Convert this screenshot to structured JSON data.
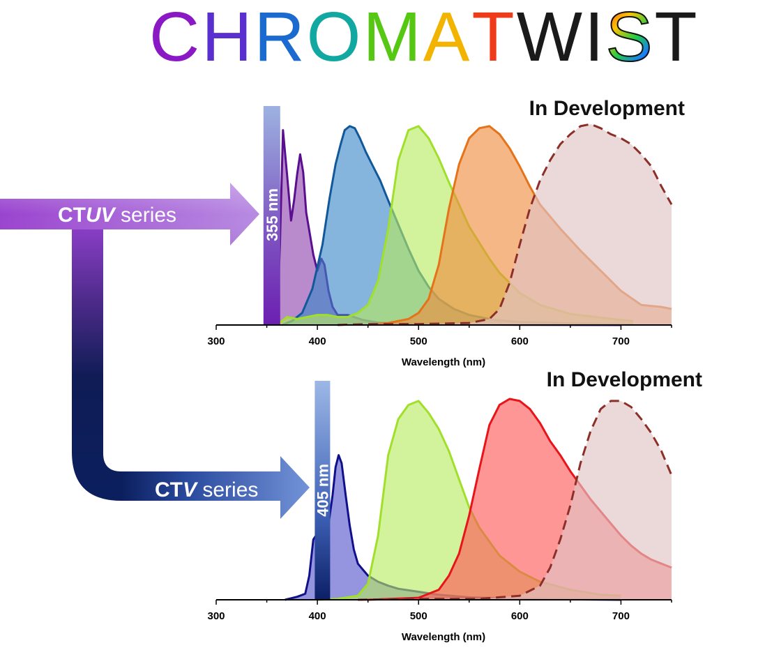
{
  "logo": {
    "text_letters": [
      "C",
      "H",
      "R",
      "O",
      "M",
      "A",
      "T",
      "W",
      "I",
      "S",
      "T"
    ],
    "letter_colors": [
      "#8a18c4",
      "#5a2fd0",
      "#1a6ad0",
      "#10a8a0",
      "#56c814",
      "#f2b400",
      "#ef3b1a",
      "#1a1a1a",
      "#1a1a1a",
      "gradient",
      "#1a1a1a"
    ],
    "gradient_letter_index": 9
  },
  "arrows": {
    "uv": {
      "label_prefix": "CT",
      "label_italic": "UV",
      "label_suffix": " series",
      "color": "#a056d4"
    },
    "v": {
      "label_prefix": "CT",
      "label_italic": "V",
      "label_suffix": " series",
      "color": "#3c5ec4"
    }
  },
  "chart_data": [
    {
      "type": "area",
      "title": "In Development",
      "xlabel": "Wavelength (nm)",
      "xlim": [
        300,
        750
      ],
      "xticks": [
        300,
        400,
        500,
        600,
        700
      ],
      "ylim": [
        0,
        1
      ],
      "excitation": {
        "label": "355 nm",
        "wavelength": 355,
        "fill": "#7d3fbe"
      },
      "series": [
        {
          "name": "CTUV violet",
          "stroke": "#5a0f8e",
          "fill": "#8e44ad",
          "dashed": false,
          "x": [
            360,
            363,
            366,
            370,
            374,
            377,
            380,
            383,
            386,
            389,
            392,
            396,
            400,
            404,
            407,
            411,
            415,
            420,
            430,
            445,
            460,
            480,
            520,
            600,
            700
          ],
          "y": [
            0,
            0.4,
            0.97,
            0.75,
            0.52,
            0.62,
            0.75,
            0.85,
            0.76,
            0.56,
            0.47,
            0.35,
            0.27,
            0.33,
            0.3,
            0.17,
            0.09,
            0.05,
            0.05,
            0.025,
            0.012,
            0.006,
            0.003,
            0.001,
            0
          ]
        },
        {
          "name": "CTUV blue",
          "stroke": "#11589a",
          "fill": "#3a86c6",
          "dashed": false,
          "x": [
            365,
            375,
            385,
            395,
            405,
            412,
            418,
            423,
            427,
            432,
            437,
            442,
            448,
            455,
            462,
            470,
            480,
            490,
            500,
            510,
            520,
            535,
            550,
            575,
            600,
            650,
            712
          ],
          "y": [
            0,
            0.02,
            0.06,
            0.18,
            0.4,
            0.63,
            0.8,
            0.9,
            0.97,
            0.99,
            0.98,
            0.93,
            0.86,
            0.79,
            0.72,
            0.62,
            0.5,
            0.38,
            0.27,
            0.19,
            0.13,
            0.08,
            0.05,
            0.025,
            0.015,
            0.008,
            0.003
          ]
        },
        {
          "name": "CTUV green",
          "stroke": "#a0e02a",
          "fill": "#b8ea60",
          "dashed": false,
          "x": [
            360,
            370,
            380,
            390,
            400,
            410,
            420,
            430,
            440,
            450,
            460,
            470,
            480,
            490,
            500,
            510,
            520,
            530,
            540,
            550,
            560,
            570,
            580,
            600,
            620,
            650,
            700,
            712
          ],
          "y": [
            0,
            0.04,
            0.03,
            0.04,
            0.05,
            0.05,
            0.04,
            0.04,
            0.06,
            0.1,
            0.22,
            0.48,
            0.82,
            0.97,
            0.99,
            0.93,
            0.83,
            0.71,
            0.6,
            0.49,
            0.41,
            0.33,
            0.26,
            0.16,
            0.1,
            0.055,
            0.025,
            0.02
          ]
        },
        {
          "name": "CTUV orange",
          "stroke": "#e5731a",
          "fill": "#f18a3e",
          "dashed": false,
          "x": [
            450,
            470,
            490,
            500,
            510,
            520,
            530,
            540,
            550,
            560,
            570,
            580,
            590,
            600,
            610,
            620,
            640,
            660,
            680,
            700,
            720,
            740,
            750
          ],
          "y": [
            0,
            0.01,
            0.03,
            0.06,
            0.13,
            0.3,
            0.58,
            0.8,
            0.93,
            0.98,
            0.99,
            0.95,
            0.88,
            0.79,
            0.69,
            0.6,
            0.48,
            0.37,
            0.27,
            0.17,
            0.1,
            0.09,
            0.08
          ]
        },
        {
          "name": "CTUV far-red (in development)",
          "stroke": "#8c2f28",
          "fill": "#e0c3c3",
          "dashed": true,
          "x": [
            420,
            450,
            500,
            550,
            570,
            580,
            590,
            600,
            610,
            620,
            630,
            640,
            650,
            660,
            670,
            680,
            690,
            700,
            710,
            720,
            730,
            740,
            750
          ],
          "y": [
            0,
            0.005,
            0.005,
            0.01,
            0.03,
            0.08,
            0.21,
            0.4,
            0.58,
            0.72,
            0.82,
            0.9,
            0.95,
            0.99,
            1.0,
            0.98,
            0.95,
            0.93,
            0.9,
            0.85,
            0.79,
            0.69,
            0.6
          ]
        }
      ]
    },
    {
      "type": "area",
      "title": "In Development",
      "xlabel": "Wavelength (nm)",
      "xlim": [
        300,
        750
      ],
      "xticks": [
        300,
        400,
        500,
        600,
        700
      ],
      "ylim": [
        0,
        1
      ],
      "excitation": {
        "label": "405 nm",
        "wavelength": 405,
        "fill": "#4e78c8"
      },
      "series": [
        {
          "name": "CTV violet",
          "stroke": "#10108a",
          "fill": "#5252cc",
          "dashed": false,
          "x": [
            368,
            380,
            388,
            392,
            396,
            400,
            405,
            410,
            415,
            418,
            421,
            424,
            428,
            432,
            436,
            440,
            445,
            450,
            460,
            470,
            480,
            500,
            520,
            550,
            600,
            650,
            700
          ],
          "y": [
            0,
            0.015,
            0.03,
            0.12,
            0.3,
            0.33,
            0.52,
            0.34,
            0.52,
            0.66,
            0.72,
            0.68,
            0.52,
            0.37,
            0.25,
            0.18,
            0.15,
            0.12,
            0.09,
            0.07,
            0.055,
            0.04,
            0.025,
            0.012,
            0.005,
            0.002,
            0
          ]
        },
        {
          "name": "CTV green",
          "stroke": "#a0e02a",
          "fill": "#b8ea60",
          "dashed": false,
          "x": [
            400,
            420,
            440,
            450,
            460,
            470,
            480,
            490,
            500,
            510,
            520,
            530,
            540,
            550,
            560,
            580,
            600,
            620,
            650,
            680,
            700
          ],
          "y": [
            0,
            0.005,
            0.02,
            0.08,
            0.32,
            0.72,
            0.9,
            0.97,
            0.99,
            0.93,
            0.85,
            0.74,
            0.6,
            0.46,
            0.36,
            0.22,
            0.14,
            0.09,
            0.05,
            0.025,
            0.02
          ]
        },
        {
          "name": "CTV red",
          "stroke": "#e8141a",
          "fill": "#ff5555",
          "dashed": false,
          "x": [
            450,
            500,
            520,
            530,
            540,
            550,
            560,
            570,
            580,
            590,
            600,
            610,
            620,
            630,
            640,
            650,
            660,
            670,
            680,
            690,
            700,
            710,
            720,
            730,
            740,
            750
          ],
          "y": [
            0,
            0.01,
            0.05,
            0.12,
            0.23,
            0.42,
            0.65,
            0.87,
            0.97,
            1.0,
            0.99,
            0.95,
            0.88,
            0.79,
            0.72,
            0.64,
            0.57,
            0.5,
            0.44,
            0.38,
            0.32,
            0.27,
            0.23,
            0.2,
            0.18,
            0.16
          ]
        },
        {
          "name": "CTV far-red (in development)",
          "stroke": "#8c2f28",
          "fill": "#e0c3c3",
          "dashed": true,
          "x": [
            440,
            500,
            560,
            600,
            620,
            630,
            640,
            650,
            660,
            670,
            680,
            690,
            700,
            710,
            720,
            730,
            740,
            750
          ],
          "y": [
            0,
            0.005,
            0.005,
            0.02,
            0.07,
            0.16,
            0.3,
            0.47,
            0.68,
            0.84,
            0.95,
            0.99,
            0.99,
            0.96,
            0.9,
            0.83,
            0.74,
            0.62
          ]
        }
      ]
    }
  ]
}
